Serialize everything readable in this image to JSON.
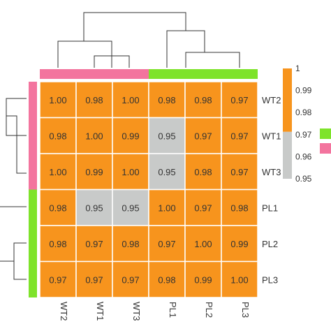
{
  "chart_data": {
    "type": "heatmap",
    "title": "",
    "rows": [
      "WT2",
      "WT1",
      "WT3",
      "PL1",
      "PL2",
      "PL3"
    ],
    "columns": [
      "WT2",
      "WT1",
      "WT3",
      "PL1",
      "PL2",
      "PL3"
    ],
    "values": [
      [
        1.0,
        0.98,
        1.0,
        0.98,
        0.98,
        0.97
      ],
      [
        0.98,
        1.0,
        0.99,
        0.95,
        0.97,
        0.97
      ],
      [
        1.0,
        0.99,
        1.0,
        0.95,
        0.98,
        0.97
      ],
      [
        0.98,
        0.95,
        0.95,
        1.0,
        0.97,
        0.98
      ],
      [
        0.98,
        0.97,
        0.98,
        0.97,
        1.0,
        0.99
      ],
      [
        0.97,
        0.97,
        0.97,
        0.98,
        0.99,
        1.0
      ]
    ],
    "cell_labels": [
      [
        "1.00",
        "0.98",
        "1.00",
        "0.98",
        "0.98",
        "0.97"
      ],
      [
        "0.98",
        "1.00",
        "0.99",
        "0.95",
        "0.97",
        "0.97"
      ],
      [
        "1.00",
        "0.99",
        "1.00",
        "0.95",
        "0.98",
        "0.97"
      ],
      [
        "0.98",
        "0.95",
        "0.95",
        "1.00",
        "0.97",
        "0.98"
      ],
      [
        "0.98",
        "0.97",
        "0.98",
        "0.97",
        "1.00",
        "0.99"
      ],
      [
        "0.97",
        "0.97",
        "0.97",
        "0.98",
        "0.99",
        "1.00"
      ]
    ],
    "row_groups": [
      "pink",
      "pink",
      "pink",
      "green",
      "green",
      "green"
    ],
    "column_groups": [
      "pink",
      "pink",
      "pink",
      "green",
      "green",
      "green"
    ],
    "color_scale": {
      "ticks": [
        "1",
        "0.99",
        "0.98",
        "0.97",
        "0.96",
        "0.95"
      ],
      "high_color": "#f7941d",
      "low_color": "#c8cac9",
      "threshold": 0.97
    },
    "group_legend": [
      "green",
      "pink"
    ],
    "colors": {
      "high": "#f7941d",
      "low": "#c8cac9",
      "pink": "#f3749e",
      "green": "#7ee32a",
      "grid": "#ffffff",
      "text": "#333333",
      "dendrogram": "#333333"
    }
  }
}
